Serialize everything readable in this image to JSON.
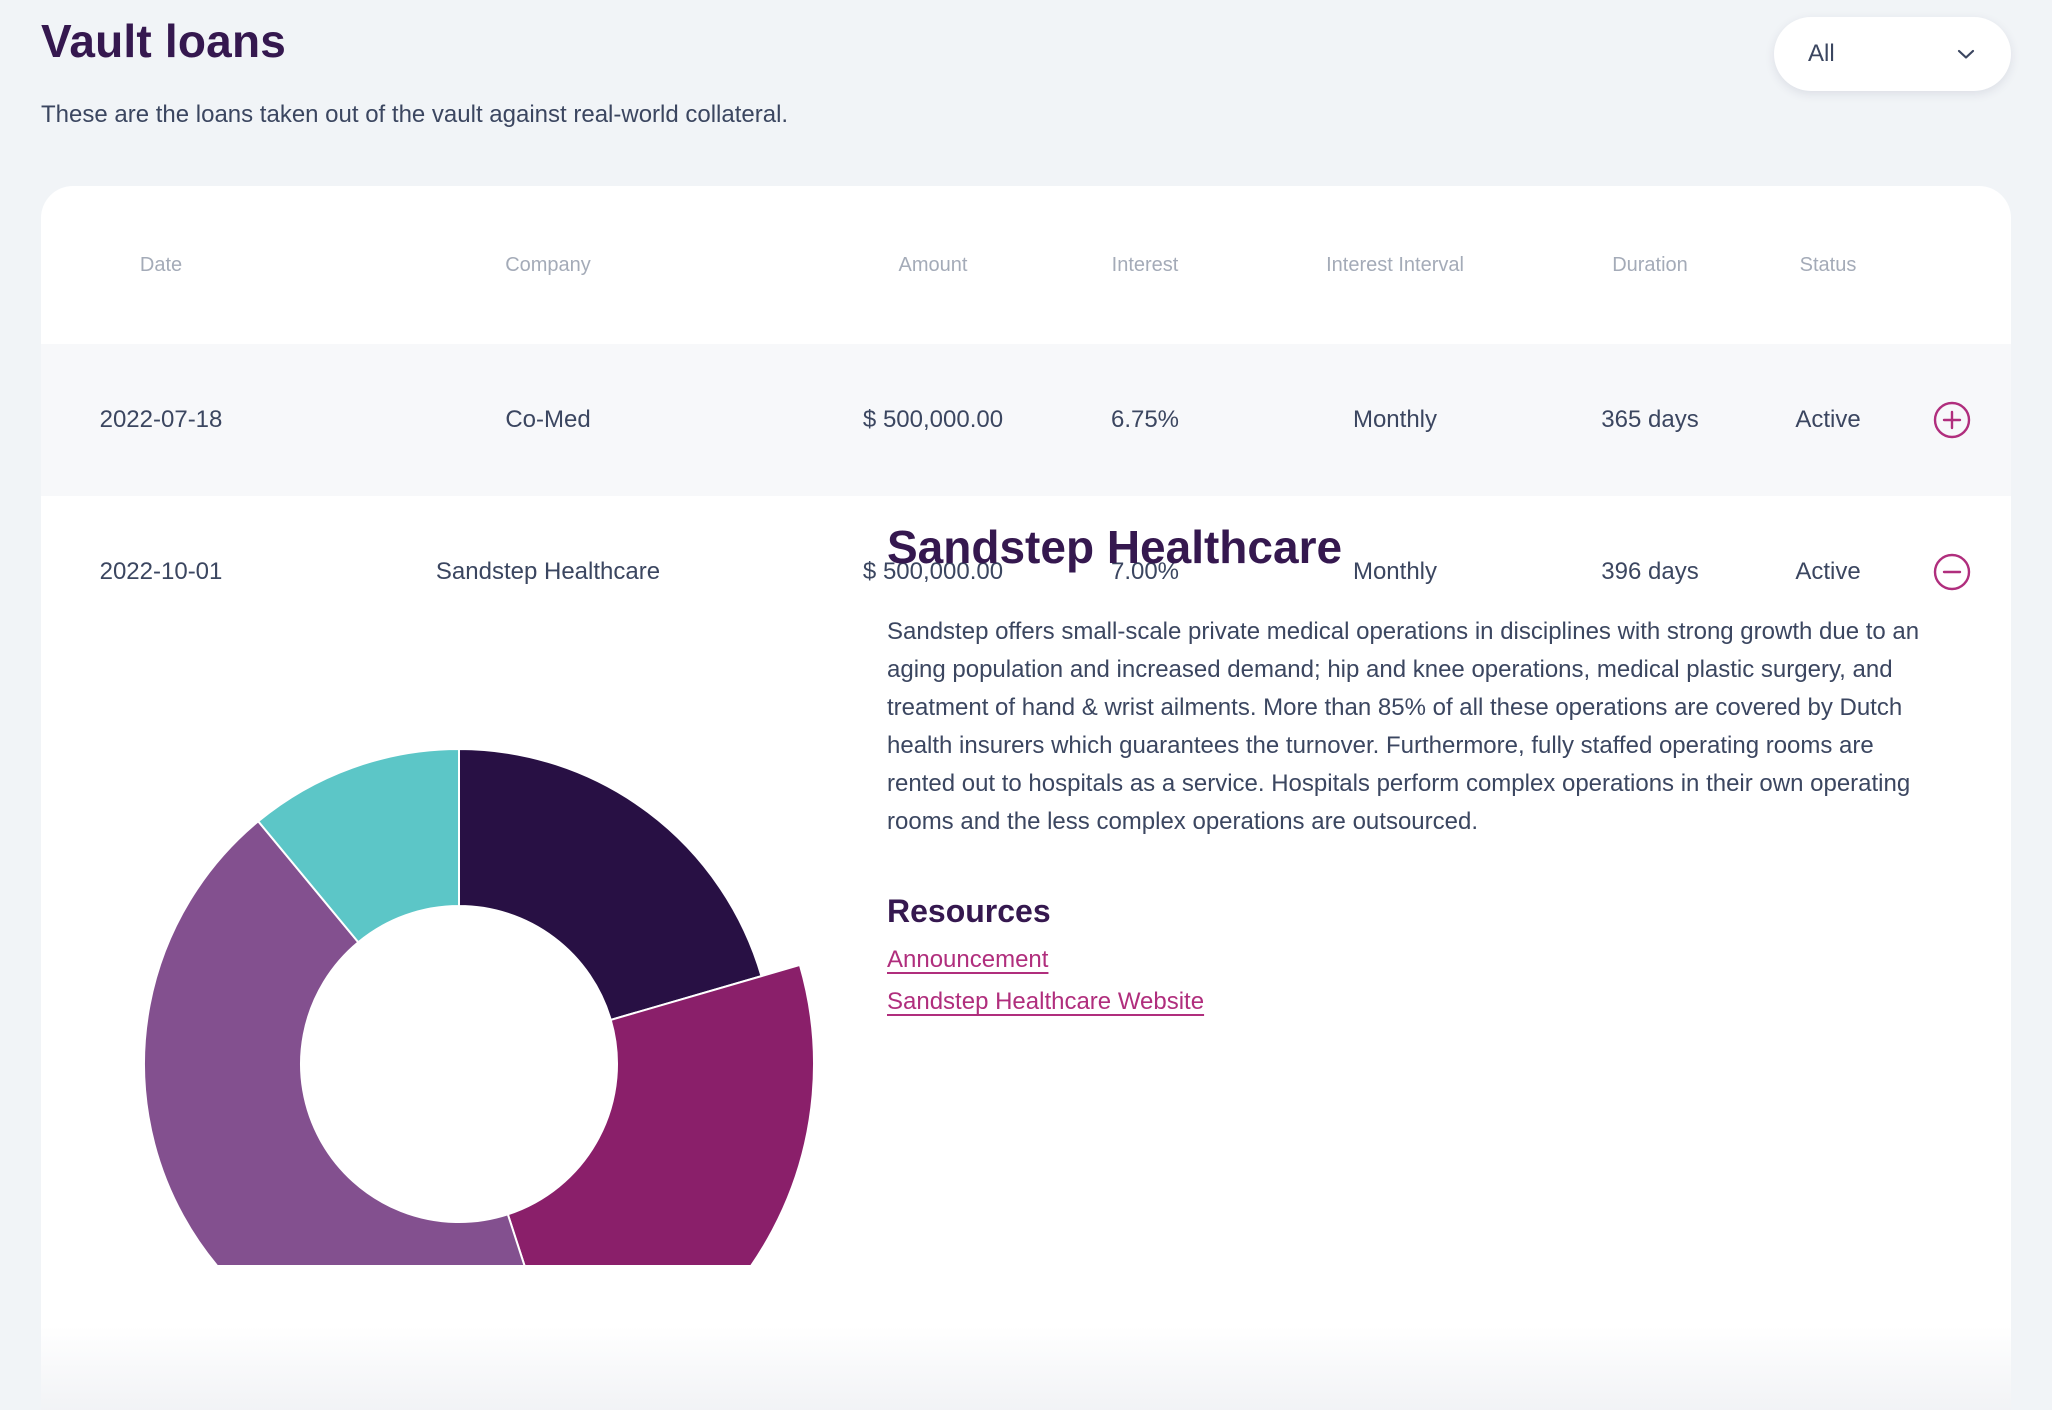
{
  "header": {
    "title": "Vault loans",
    "subtitle": "These are the loans taken out of the vault against real-world collateral."
  },
  "filter": {
    "selected": "All",
    "icon": "chevron-down-icon"
  },
  "table": {
    "columns": [
      "Date",
      "Company",
      "Amount",
      "Interest",
      "Interest Interval",
      "Duration",
      "Status"
    ],
    "rows": [
      {
        "date": "2022-07-18",
        "company": "Co-Med",
        "amount": "$ 500,000.00",
        "interest": "6.75%",
        "interval": "Monthly",
        "duration": "365 days",
        "status": "Active",
        "action_icon": "plus-circle-icon",
        "expanded": false
      },
      {
        "date": "2022-10-01",
        "company": "Sandstep Healthcare",
        "amount": "$ 500,000.00",
        "interest": "7.00%",
        "interval": "Monthly",
        "duration": "396 days",
        "status": "Active",
        "action_icon": "minus-circle-icon",
        "expanded": true
      }
    ]
  },
  "details": {
    "title": "Sandstep Healthcare",
    "description": "Sandstep offers small-scale private medical operations in disciplines with strong growth due to an aging population and increased demand; hip and knee operations, medical plastic surgery, and treatment of hand & wrist ailments. More than 85% of all these operations are covered by Dutch health insurers which guarantees the turnover. Furthermore, fully staffed operating rooms are rented out to hospitals as a service. Hospitals perform complex operations in their own operating rooms and the less complex operations are outsourced.",
    "resources_title": "Resources",
    "resources": [
      "Announcement",
      "Sandstep Healthcare Website"
    ]
  },
  "chart_data": {
    "type": "pie",
    "variant": "donut",
    "title": "",
    "slices": [
      {
        "value": 0.205,
        "color": "#281044",
        "highlighted": false
      },
      {
        "value": 0.245,
        "color": "#8a1f6a",
        "highlighted": true
      },
      {
        "value": 0.44,
        "color": "#83508f",
        "highlighted": false
      },
      {
        "value": 0.11,
        "color": "#5cc6c7",
        "highlighted": false
      }
    ]
  },
  "colors": {
    "background": "#f1f4f7",
    "title": "#35184f",
    "text": "#3b4660",
    "muted": "#a4abb8",
    "accent": "#b02e7d"
  }
}
